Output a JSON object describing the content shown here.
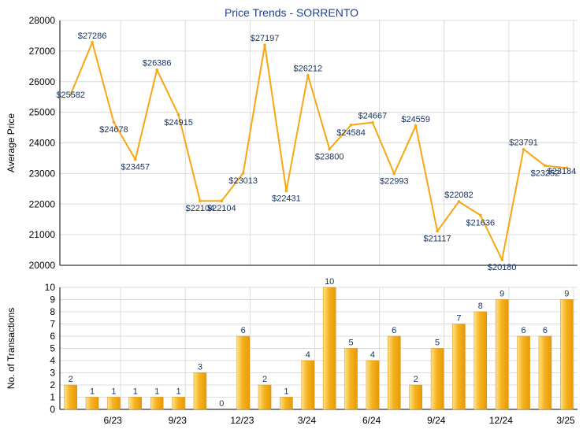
{
  "colors": {
    "line": "#f7a711",
    "bar_light": "#fde38a",
    "bar_mid": "#f6b21f",
    "bar_dark": "#e69a06",
    "label": "#17315f",
    "grid": "#dcdcdc",
    "axis": "#000000"
  },
  "chart_data": [
    {
      "type": "line",
      "title": "Price Trends - SORRENTO",
      "xlabel": "",
      "ylabel": "Average Price",
      "ylim": [
        20000,
        28000
      ],
      "yticks": [
        "20000",
        "21000",
        "22000",
        "23000",
        "24000",
        "25000",
        "26000",
        "27000",
        "28000"
      ],
      "grid": true,
      "months": [
        "4/23",
        "5/23",
        "6/23",
        "7/23",
        "8/23",
        "9/23",
        "10/23",
        "11/23",
        "12/23",
        "1/24",
        "2/24",
        "3/24",
        "4/24",
        "5/24",
        "6/24",
        "7/24",
        "8/24",
        "9/24",
        "10/24",
        "11/24",
        "12/24",
        "1/25",
        "2/25",
        "3/25"
      ],
      "values": [
        25582,
        27286,
        24678,
        23457,
        26386,
        24915,
        22104,
        22104,
        23013,
        27197,
        22431,
        26212,
        23800,
        24584,
        24667,
        22993,
        24559,
        21117,
        22082,
        21636,
        20180,
        23791,
        23252,
        23184
      ],
      "labels": [
        "$25582",
        "$27286",
        "$24678",
        "$23457",
        "$26386",
        "$24915",
        "$22104",
        "$22104",
        "$23013",
        "$27197",
        "$22431",
        "$26212",
        "$23800",
        "$24584",
        "$24667",
        "$22993",
        "$24559",
        "$21117",
        "$22082",
        "$21636",
        "$20180",
        "$23791",
        "$23252",
        "$23184"
      ]
    },
    {
      "type": "bar",
      "xlabel": "",
      "ylabel": "No. of Transactions",
      "ylim": [
        0,
        10
      ],
      "yticks": [
        "0",
        "1",
        "2",
        "3",
        "4",
        "5",
        "6",
        "7",
        "8",
        "9",
        "10"
      ],
      "grid": true,
      "categories": [
        "4/23",
        "5/23",
        "6/23",
        "7/23",
        "8/23",
        "9/23",
        "10/23",
        "11/23",
        "12/23",
        "1/24",
        "2/24",
        "3/24",
        "4/24",
        "5/24",
        "6/24",
        "7/24",
        "8/24",
        "9/24",
        "10/24",
        "11/24",
        "12/24",
        "1/25",
        "2/25",
        "3/25"
      ],
      "values": [
        2,
        1,
        1,
        1,
        1,
        1,
        3,
        0,
        6,
        2,
        1,
        4,
        10,
        5,
        4,
        6,
        2,
        5,
        7,
        8,
        9,
        6,
        6,
        9
      ],
      "labels": [
        "2",
        "1",
        "1",
        "1",
        "1",
        "1",
        "3",
        "0",
        "6",
        "2",
        "1",
        "4",
        "10",
        "5",
        "4",
        "6",
        "2",
        "5",
        "7",
        "8",
        "9",
        "6",
        "6",
        "9"
      ],
      "xticks": [
        "6/23",
        "9/23",
        "12/23",
        "3/24",
        "6/24",
        "9/24",
        "12/24",
        "3/25"
      ],
      "xtick_month_index": [
        2,
        5,
        8,
        11,
        14,
        17,
        20,
        23
      ]
    }
  ]
}
